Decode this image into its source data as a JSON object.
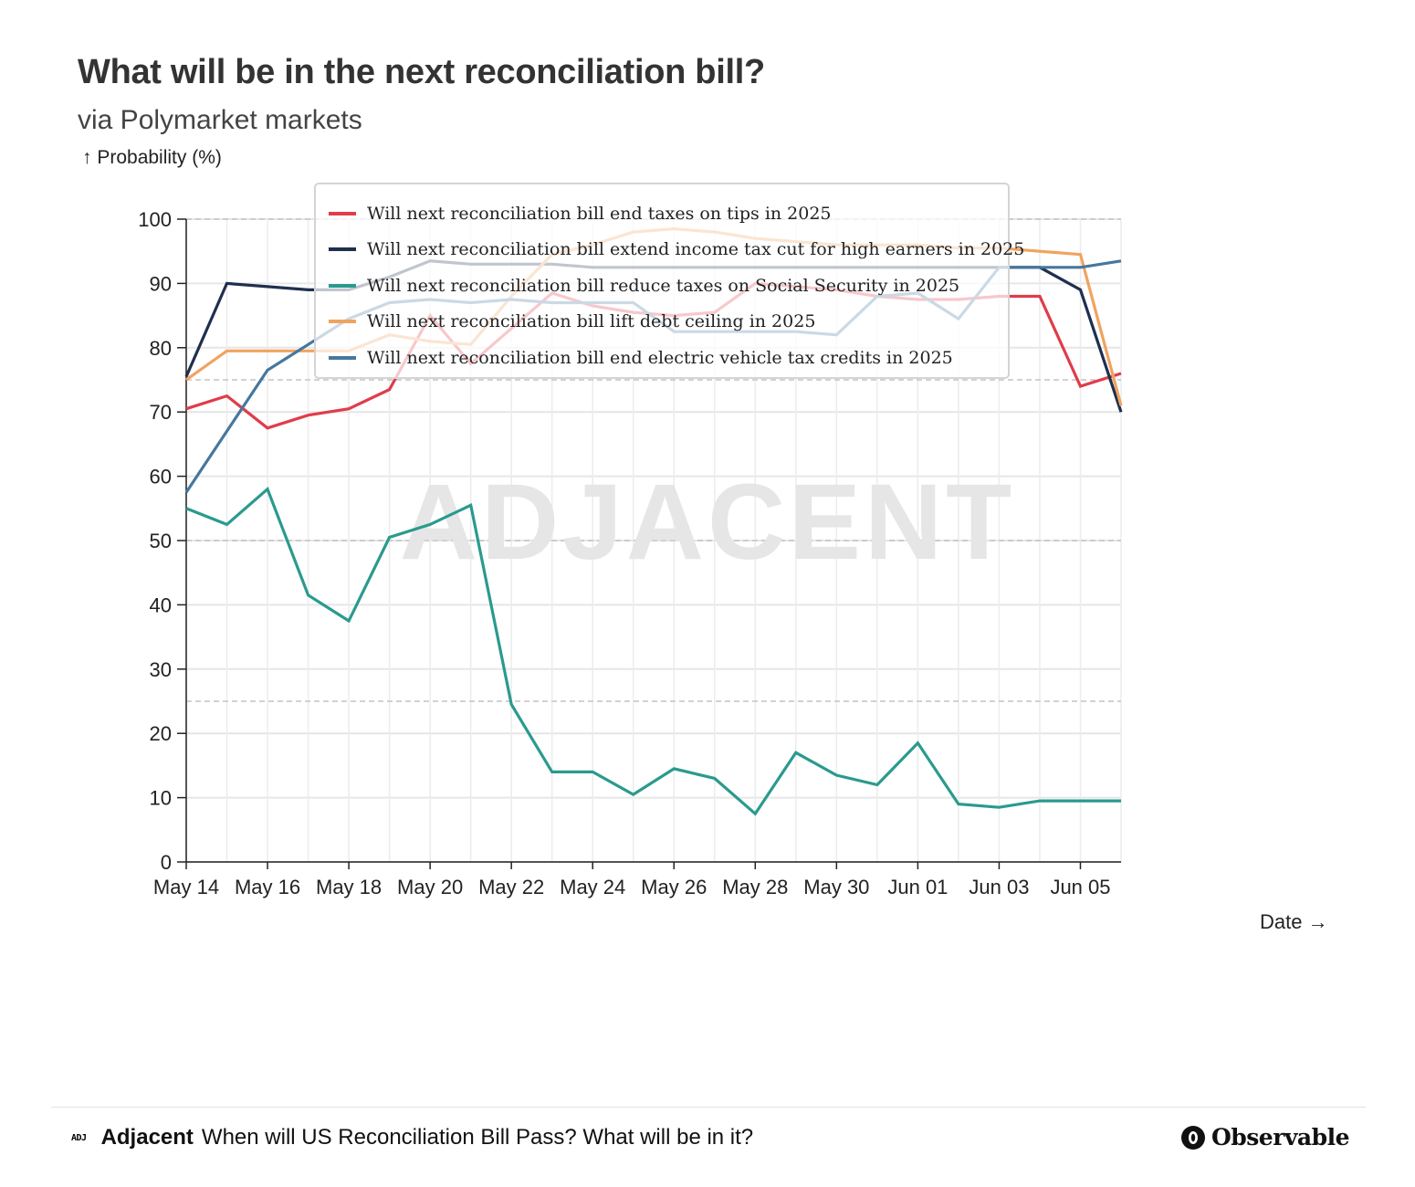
{
  "header": {
    "title": "What will be in the next reconciliation bill?",
    "subtitle": "via Polymarket markets"
  },
  "watermark": "ADJACENT",
  "footer": {
    "logo_text": "ADJ",
    "brand": "Adjacent",
    "text": "When will US Reconciliation Bill Pass? What will be in it?",
    "observable": "Observable"
  },
  "chart_data": {
    "type": "line",
    "title": "What will be in the next reconciliation bill?",
    "subtitle": "via Polymarket markets",
    "ylabel": "↑ Probability (%)",
    "xlabel": "Date →",
    "ylim": [
      0,
      100
    ],
    "yticks": [
      0,
      10,
      20,
      30,
      40,
      50,
      60,
      70,
      80,
      90,
      100
    ],
    "reference_lines": [
      25,
      50,
      75,
      100
    ],
    "grid": true,
    "legend_position": "top",
    "x": [
      "2025-05-14",
      "2025-05-15",
      "2025-05-16",
      "2025-05-17",
      "2025-05-18",
      "2025-05-19",
      "2025-05-20",
      "2025-05-21",
      "2025-05-22",
      "2025-05-23",
      "2025-05-24",
      "2025-05-25",
      "2025-05-26",
      "2025-05-27",
      "2025-05-28",
      "2025-05-29",
      "2025-05-30",
      "2025-05-31",
      "2025-06-01",
      "2025-06-02",
      "2025-06-03",
      "2025-06-04",
      "2025-06-05",
      "2025-06-06"
    ],
    "x_tick_labels": [
      {
        "date": "2025-05-14",
        "label": "May 14"
      },
      {
        "date": "2025-05-16",
        "label": "May 16"
      },
      {
        "date": "2025-05-18",
        "label": "May 18"
      },
      {
        "date": "2025-05-20",
        "label": "May 20"
      },
      {
        "date": "2025-05-22",
        "label": "May 22"
      },
      {
        "date": "2025-05-24",
        "label": "May 24"
      },
      {
        "date": "2025-05-26",
        "label": "May 26"
      },
      {
        "date": "2025-05-28",
        "label": "May 28"
      },
      {
        "date": "2025-05-30",
        "label": "May 30"
      },
      {
        "date": "2025-06-01",
        "label": "Jun 01"
      },
      {
        "date": "2025-06-03",
        "label": "Jun 03"
      },
      {
        "date": "2025-06-05",
        "label": "Jun 05"
      }
    ],
    "series": [
      {
        "name": "Will next reconciliation bill end taxes on tips in 2025",
        "color": "#e03c4a",
        "values": [
          70.5,
          72.5,
          67.5,
          69.5,
          70.5,
          73.5,
          85,
          77.5,
          83,
          88.5,
          86.5,
          85.5,
          85,
          85.5,
          90,
          89.5,
          89,
          88,
          87.5,
          87.5,
          88,
          88,
          74,
          76
        ]
      },
      {
        "name": "Will next reconciliation bill extend income tax cut for high earners in 2025",
        "color": "#1f2f4f",
        "values": [
          75.5,
          90,
          89.5,
          89,
          89,
          91,
          93.5,
          93,
          93,
          93,
          92.5,
          92.5,
          92.5,
          92.5,
          92.5,
          92.5,
          92.5,
          92.5,
          92.5,
          92.5,
          92.5,
          92.5,
          89,
          70
        ]
      },
      {
        "name": "Will next reconciliation bill reduce taxes on Social Security in 2025",
        "color": "#2a9a8e",
        "values": [
          55,
          52.5,
          58,
          41.5,
          37.5,
          50.5,
          52.5,
          55.5,
          24.5,
          14,
          14,
          10.5,
          14.5,
          13,
          7.5,
          17,
          13.5,
          12,
          18.5,
          9,
          8.5,
          9.5,
          9.5,
          9.5
        ]
      },
      {
        "name": "Will next reconciliation bill lift debt ceiling in 2025",
        "color": "#f0a35e",
        "values": [
          75,
          79.5,
          79.5,
          79.5,
          79.5,
          82,
          81,
          80.5,
          88,
          94.5,
          96,
          98,
          98.5,
          98,
          97,
          96.5,
          96,
          96,
          96,
          95.5,
          95.5,
          95,
          94.5,
          71
        ]
      },
      {
        "name": "Will next reconciliation bill end electric vehicle tax credits in 2025",
        "color": "#46779e",
        "values": [
          57.5,
          67,
          76.5,
          80.5,
          84.5,
          87,
          87.5,
          87,
          87.5,
          87,
          87,
          87,
          82.5,
          82.5,
          82.5,
          82.5,
          82,
          88,
          88.5,
          84.5,
          92.5,
          92.5,
          92.5,
          93.5
        ]
      }
    ]
  }
}
